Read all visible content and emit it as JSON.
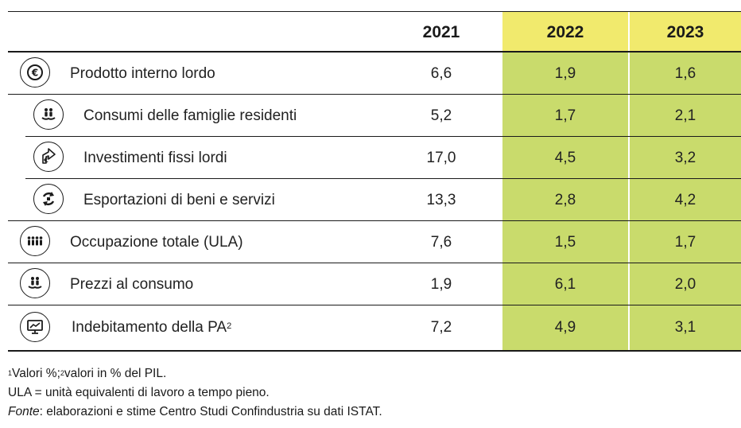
{
  "colors": {
    "header_highlight": "#f1ea6d",
    "body_highlight": "#c9db6c"
  },
  "columns": [
    "2021",
    "2022",
    "2023"
  ],
  "rows": [
    {
      "label": "Prodotto interno lordo",
      "icon": "euro-coin-icon",
      "values": [
        "6,6",
        "1,9",
        "1,6"
      ]
    },
    {
      "label": "Consumi delle famiglie residenti",
      "icon": "family-hand-icon",
      "values": [
        "5,2",
        "1,7",
        "2,1"
      ]
    },
    {
      "label": "Investimenti fissi lordi",
      "icon": "investment-arrow-icon",
      "values": [
        "17,0",
        "4,5",
        "3,2"
      ]
    },
    {
      "label": "Esportazioni di beni e servizi",
      "icon": "export-arrows-icon",
      "values": [
        "13,3",
        "2,8",
        "4,2"
      ]
    },
    {
      "label": "Occupazione totale (ULA)",
      "icon": "workers-group-icon",
      "values": [
        "7,6",
        "1,5",
        "1,7"
      ]
    },
    {
      "label": "Prezzi al consumo",
      "icon": "consumer-hand-icon",
      "values": [
        "1,9",
        "6,1",
        "2,0"
      ]
    },
    {
      "label": "Indebitamento della PA",
      "label_sup": "2",
      "icon": "monitor-chart-icon",
      "values": [
        "7,2",
        "4,9",
        "3,1"
      ]
    }
  ],
  "notes": {
    "sup1": "1",
    "line1_a": "Valori %;",
    "sup2": "2",
    "line1_b": "valori in % del PIL.",
    "line2": "ULA = unità equivalenti di lavoro a tempo pieno.",
    "line3_em": "Fonte",
    "line3_rest": ": elaborazioni e stime Centro Studi Confindustria su dati ISTAT."
  }
}
